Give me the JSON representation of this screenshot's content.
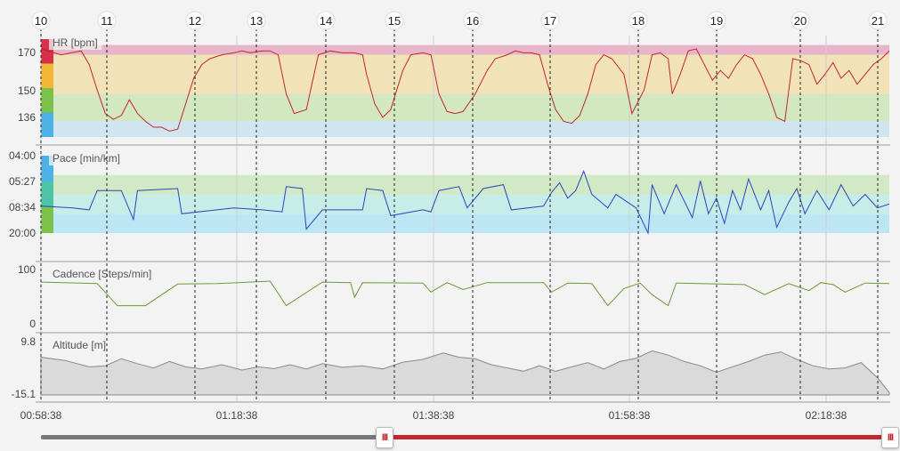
{
  "chart_data": {
    "type": "line",
    "lap_markers": [
      "10",
      "11",
      "12",
      "13",
      "14",
      "15",
      "16",
      "17",
      "18",
      "19",
      "20",
      "21"
    ],
    "time_ticks": [
      "00:58:38",
      "01:18:38",
      "01:38:38",
      "01:58:38",
      "02:18:38"
    ],
    "panels": [
      {
        "label": "HR [bpm]",
        "ticks": [
          "170",
          "150",
          "136"
        ],
        "ylim": [
          128,
          178
        ],
        "zones": [
          {
            "from": 170,
            "to": 175,
            "color": "#e7b4c8"
          },
          {
            "from": 150,
            "to": 170,
            "color": "#f2e2b8"
          },
          {
            "from": 136,
            "to": 150,
            "color": "#d3e7c1"
          },
          {
            "from": 128,
            "to": 136,
            "color": "#cfe5f0"
          }
        ],
        "markers": [
          "#d8304a",
          "#f2b636",
          "#7cc24a",
          "#4db2e6"
        ],
        "line_color": "#c1272d",
        "series_points": [
          [
            0,
            173
          ],
          [
            5,
            170
          ],
          [
            10,
            172
          ],
          [
            12,
            165
          ],
          [
            14,
            152
          ],
          [
            16,
            140
          ],
          [
            18,
            137
          ],
          [
            20,
            139
          ],
          [
            22,
            147
          ],
          [
            24,
            140
          ],
          [
            26,
            136
          ],
          [
            28,
            133
          ],
          [
            30,
            133
          ],
          [
            32,
            131
          ],
          [
            34,
            132
          ],
          [
            36,
            145
          ],
          [
            38,
            158
          ],
          [
            40,
            165
          ],
          [
            42,
            168
          ],
          [
            45,
            170
          ],
          [
            48,
            171
          ],
          [
            50,
            172
          ],
          [
            52,
            171
          ],
          [
            55,
            172
          ],
          [
            57,
            172
          ],
          [
            59,
            170
          ],
          [
            61,
            150
          ],
          [
            63,
            140
          ],
          [
            66,
            142
          ],
          [
            69,
            170
          ],
          [
            72,
            172
          ],
          [
            75,
            171
          ],
          [
            78,
            171
          ],
          [
            80,
            170
          ],
          [
            81,
            160
          ],
          [
            83,
            145
          ],
          [
            85,
            138
          ],
          [
            87,
            142
          ],
          [
            90,
            162
          ],
          [
            92,
            170
          ],
          [
            95,
            171
          ],
          [
            97,
            170
          ],
          [
            99,
            150
          ],
          [
            101,
            141
          ],
          [
            103,
            140
          ],
          [
            105,
            141
          ],
          [
            108,
            150
          ],
          [
            111,
            162
          ],
          [
            113,
            168
          ],
          [
            116,
            170
          ],
          [
            118,
            172
          ],
          [
            120,
            171
          ],
          [
            122,
            171
          ],
          [
            124,
            170
          ],
          [
            126,
            155
          ],
          [
            128,
            142
          ],
          [
            130,
            136
          ],
          [
            132,
            135
          ],
          [
            134,
            139
          ],
          [
            136,
            150
          ],
          [
            138,
            165
          ],
          [
            140,
            170
          ],
          [
            142,
            168
          ],
          [
            145,
            160
          ],
          [
            147,
            140
          ],
          [
            150,
            152
          ],
          [
            152,
            170
          ],
          [
            154,
            171
          ],
          [
            156,
            168
          ],
          [
            157,
            150
          ],
          [
            159,
            160
          ],
          [
            161,
            172
          ],
          [
            163,
            173
          ],
          [
            165,
            165
          ],
          [
            167,
            157
          ],
          [
            169,
            162
          ],
          [
            171,
            158
          ],
          [
            173,
            165
          ],
          [
            175,
            170
          ],
          [
            177,
            168
          ],
          [
            179,
            160
          ],
          [
            181,
            150
          ],
          [
            183,
            138
          ],
          [
            185,
            136
          ],
          [
            187,
            168
          ],
          [
            189,
            167
          ],
          [
            191,
            165
          ],
          [
            193,
            155
          ],
          [
            195,
            160
          ],
          [
            197,
            166
          ],
          [
            199,
            158
          ],
          [
            201,
            162
          ],
          [
            203,
            155
          ],
          [
            205,
            160
          ],
          [
            207,
            165
          ],
          [
            209,
            168
          ],
          [
            211,
            172
          ]
        ]
      },
      {
        "label": "Pace [min/km]",
        "ticks": [
          "04:00",
          "05:27",
          "08:34",
          "20:00"
        ],
        "ylim": [
          0,
          4
        ],
        "zones": [
          {
            "from": 0,
            "to": 1,
            "color": "#bce6f3"
          },
          {
            "from": 1,
            "to": 2,
            "color": "#c8ece7"
          },
          {
            "from": 2,
            "to": 3,
            "color": "#d2e9c5"
          }
        ],
        "markers": [
          "#4db2e6",
          "#4fc3a6",
          "#7cc24a"
        ],
        "line_color": "#2b45c0",
        "series_points": [
          [
            0,
            1.4
          ],
          [
            8,
            1.3
          ],
          [
            12,
            1.2
          ],
          [
            14,
            2.2
          ],
          [
            20,
            2.2
          ],
          [
            23,
            0.7
          ],
          [
            24,
            2.2
          ],
          [
            34,
            2.3
          ],
          [
            35,
            1.0
          ],
          [
            48,
            1.3
          ],
          [
            55,
            1.2
          ],
          [
            60,
            1.1
          ],
          [
            61,
            2.4
          ],
          [
            65,
            2.3
          ],
          [
            66,
            0.2
          ],
          [
            70,
            1.2
          ],
          [
            80,
            1.2
          ],
          [
            81,
            2.3
          ],
          [
            85,
            2.2
          ],
          [
            87,
            0.9
          ],
          [
            95,
            1.2
          ],
          [
            97,
            1.1
          ],
          [
            99,
            2.2
          ],
          [
            104,
            2.4
          ],
          [
            106,
            1.3
          ],
          [
            110,
            2.3
          ],
          [
            115,
            2.5
          ],
          [
            117,
            1.2
          ],
          [
            125,
            1.4
          ],
          [
            127,
            2.1
          ],
          [
            129,
            2.6
          ],
          [
            131,
            1.8
          ],
          [
            133,
            2.2
          ],
          [
            135,
            3.2
          ],
          [
            137,
            2.0
          ],
          [
            141,
            1.3
          ],
          [
            143,
            2.0
          ],
          [
            148,
            1.3
          ],
          [
            151,
            0.0
          ],
          [
            152,
            2.5
          ],
          [
            155,
            1.0
          ],
          [
            158,
            2.5
          ],
          [
            162,
            0.8
          ],
          [
            164,
            2.7
          ],
          [
            166,
            1.0
          ],
          [
            168,
            1.8
          ],
          [
            170,
            0.5
          ],
          [
            172,
            2.2
          ],
          [
            174,
            1.2
          ],
          [
            176,
            2.8
          ],
          [
            179,
            1.2
          ],
          [
            181,
            2.2
          ],
          [
            183,
            0.3
          ],
          [
            186,
            1.6
          ],
          [
            188,
            2.3
          ],
          [
            190,
            1.0
          ],
          [
            193,
            2.2
          ],
          [
            196,
            1.2
          ],
          [
            199,
            2.5
          ],
          [
            202,
            1.4
          ],
          [
            205,
            2.0
          ],
          [
            208,
            1.3
          ],
          [
            211,
            1.5
          ]
        ]
      },
      {
        "label": "Cadence [Steps/min]",
        "ticks": [
          "100",
          "0"
        ],
        "ylim": [
          0,
          110
        ],
        "zones": [],
        "markers": [],
        "line_color": "#6e9a3a",
        "series_points": [
          [
            0,
            85
          ],
          [
            14,
            82
          ],
          [
            19,
            38
          ],
          [
            26,
            38
          ],
          [
            34,
            81
          ],
          [
            44,
            82
          ],
          [
            57,
            87
          ],
          [
            61,
            38
          ],
          [
            70,
            85
          ],
          [
            77,
            84
          ],
          [
            78,
            55
          ],
          [
            80,
            84
          ],
          [
            95,
            83
          ],
          [
            97,
            65
          ],
          [
            101,
            84
          ],
          [
            105,
            70
          ],
          [
            111,
            84
          ],
          [
            125,
            84
          ],
          [
            127,
            65
          ],
          [
            131,
            83
          ],
          [
            137,
            82
          ],
          [
            139,
            60
          ],
          [
            141,
            38
          ],
          [
            145,
            72
          ],
          [
            149,
            83
          ],
          [
            152,
            60
          ],
          [
            156,
            38
          ],
          [
            158,
            83
          ],
          [
            175,
            80
          ],
          [
            180,
            60
          ],
          [
            186,
            82
          ],
          [
            191,
            68
          ],
          [
            194,
            84
          ],
          [
            197,
            80
          ],
          [
            200,
            65
          ],
          [
            205,
            83
          ],
          [
            211,
            82
          ]
        ]
      },
      {
        "label": "Altitude [m]",
        "ticks": [
          "9.8",
          "-15.1"
        ],
        "ylim": [
          -15.1,
          9.8
        ],
        "zones": [],
        "markers": [],
        "line_color": "#8a8a8a",
        "series_points": [
          [
            0,
            2.5
          ],
          [
            6,
            1.0
          ],
          [
            12,
            -2.0
          ],
          [
            16,
            -1.5
          ],
          [
            20,
            1.8
          ],
          [
            24,
            -0.5
          ],
          [
            28,
            -2.5
          ],
          [
            32,
            0.5
          ],
          [
            36,
            -2.0
          ],
          [
            40,
            -3.0
          ],
          [
            45,
            -1.0
          ],
          [
            50,
            -3.5
          ],
          [
            54,
            -2.0
          ],
          [
            58,
            -2.8
          ],
          [
            62,
            -1.0
          ],
          [
            66,
            -3.0
          ],
          [
            70,
            -0.5
          ],
          [
            75,
            -2.2
          ],
          [
            80,
            -1.5
          ],
          [
            85,
            -3.0
          ],
          [
            90,
            0.2
          ],
          [
            95,
            1.5
          ],
          [
            100,
            4.5
          ],
          [
            104,
            2.5
          ],
          [
            108,
            1.8
          ],
          [
            112,
            -1.0
          ],
          [
            116,
            -2.5
          ],
          [
            120,
            -4.0
          ],
          [
            124,
            -1.5
          ],
          [
            128,
            -4.0
          ],
          [
            132,
            -2.0
          ],
          [
            136,
            0.0
          ],
          [
            140,
            -3.0
          ],
          [
            144,
            0.5
          ],
          [
            148,
            2.0
          ],
          [
            152,
            5.5
          ],
          [
            156,
            3.5
          ],
          [
            160,
            0.5
          ],
          [
            164,
            -1.5
          ],
          [
            168,
            -4.5
          ],
          [
            172,
            -2.0
          ],
          [
            176,
            0.5
          ],
          [
            180,
            3.5
          ],
          [
            184,
            5.0
          ],
          [
            188,
            1.5
          ],
          [
            192,
            -1.5
          ],
          [
            196,
            -3.0
          ],
          [
            200,
            -2.5
          ],
          [
            204,
            0.0
          ],
          [
            208,
            -7.0
          ],
          [
            211,
            -14.0
          ]
        ]
      }
    ],
    "slider": {
      "range_start": 0.404,
      "range_end": 1.0
    }
  }
}
